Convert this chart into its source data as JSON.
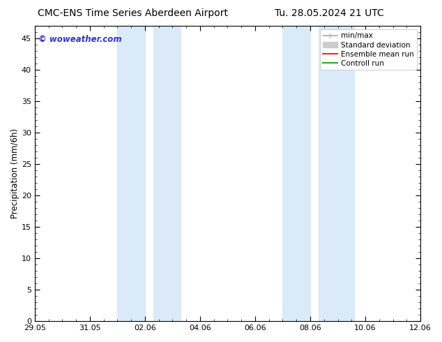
{
  "title_left": "CMC-ENS Time Series Aberdeen Airport",
  "title_right": "Tu. 28.05.2024 21 UTC",
  "ylabel": "Precipitation (mm/6h)",
  "watermark": "© woweather.com",
  "ylim": [
    0,
    47
  ],
  "yticks": [
    0,
    5,
    10,
    15,
    20,
    25,
    30,
    35,
    40,
    45
  ],
  "xtick_labels": [
    "29.05",
    "31.05",
    "02.06",
    "04.06",
    "06.06",
    "08.06",
    "10.06",
    "12.06"
  ],
  "xtick_positions": [
    0,
    2,
    4,
    6,
    8,
    10,
    12,
    14
  ],
  "shade_blocks": [
    [
      3.0,
      4.0
    ],
    [
      4.3,
      5.3
    ],
    [
      9.0,
      10.0
    ],
    [
      10.3,
      11.6
    ]
  ],
  "shade_color": "#daeaf8",
  "background_color": "#ffffff",
  "font_size_title": 10,
  "font_size_tick": 8,
  "font_size_legend": 7.5,
  "font_size_ylabel": 8.5,
  "watermark_color": "#3333cc",
  "legend_minmax_color": "#aaaaaa",
  "legend_std_color": "#cccccc",
  "legend_ens_color": "#ff2222",
  "legend_ctrl_color": "#22aa22"
}
